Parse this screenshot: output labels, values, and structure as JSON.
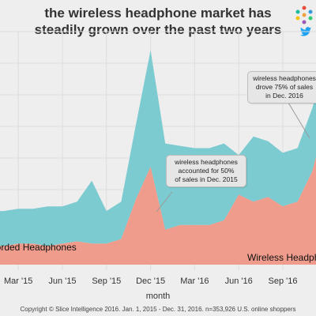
{
  "title": {
    "line1": "the wireless headphone market has",
    "line2": "steadily grown over the past two years"
  },
  "brand": {
    "logo_icon": "slice-logo-icon",
    "share_icon": "twitter-bird-icon",
    "share_color": "#1da1f2"
  },
  "callouts": [
    {
      "lines": [
        "wireless headphones",
        "accounted for 50%",
        "of sales in Dec. 2015"
      ]
    },
    {
      "lines": [
        "wireless headphones",
        "drove 75% of sales",
        "in Dec. 2016"
      ]
    }
  ],
  "xlabel": "month",
  "copyright": "Copyright © Slice Intelligence 2016. Jan. 1, 2015 - Dec. 31, 2016. n=353,926 U.S. online shoppers",
  "chart_data": {
    "type": "area",
    "stacked": true,
    "x": [
      "Jan '15",
      "Feb '15",
      "Mar '15",
      "Apr '15",
      "May '15",
      "Jun '15",
      "Jul '15",
      "Aug '15",
      "Sep '15",
      "Oct '15",
      "Nov '15",
      "Dec '15",
      "Jan '16",
      "Feb '16",
      "Mar '16",
      "Apr '16",
      "May '16",
      "Jun '16",
      "Jul '16",
      "Aug '16",
      "Sep '16",
      "Oct '16",
      "Nov '16",
      "Dec '16"
    ],
    "x_ticks": [
      "Mar '15",
      "Jun '15",
      "Sep '15",
      "Dec '15",
      "Mar '16",
      "Jun '16",
      "Sep '16"
    ],
    "series": [
      {
        "name": "Wireless Headphones",
        "color": "#ef9c8c",
        "values": [
          8,
          8,
          9,
          9,
          8,
          9,
          10,
          9,
          9,
          11,
          28,
          42,
          15,
          17,
          17,
          17,
          19,
          30,
          27,
          29,
          25,
          27,
          40,
          64
        ]
      },
      {
        "name": "Corded Headphones",
        "color": "#7ccbd1",
        "values": [
          15,
          15,
          15,
          15,
          17,
          16,
          17,
          27,
          14,
          16,
          32,
          50,
          37,
          34,
          33,
          33,
          33,
          17,
          28,
          24,
          23,
          23,
          27,
          25
        ]
      }
    ],
    "series_labels": [
      "Corded Headphones",
      "Wireless Headphones"
    ],
    "ylim": [
      0,
      100
    ],
    "y_axis_visible": false,
    "grid": true
  }
}
